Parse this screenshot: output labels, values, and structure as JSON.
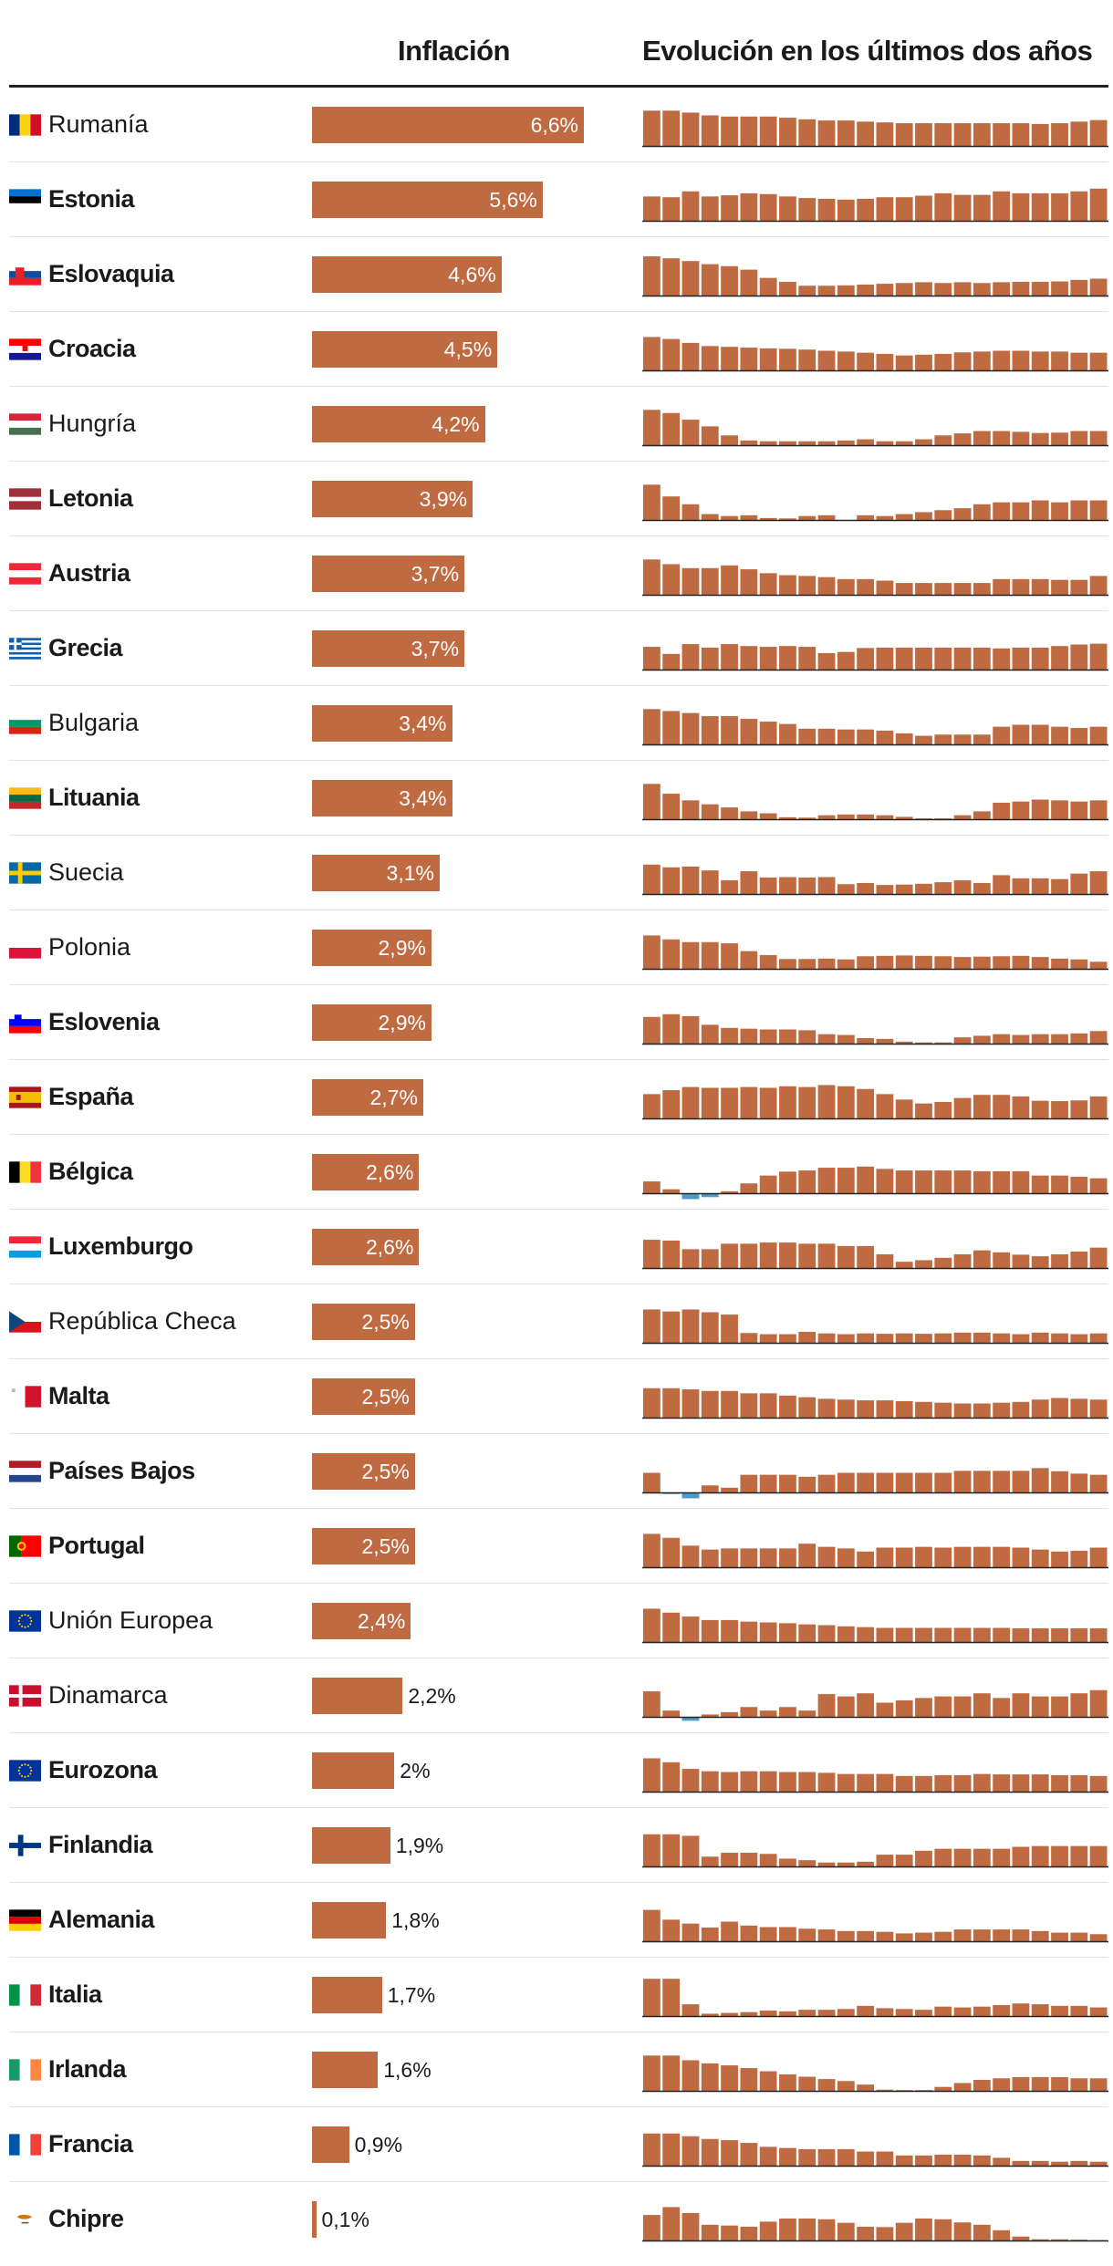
{
  "header": {
    "inflation": "Inflación",
    "evolution": "Evolución en los últimos dos años"
  },
  "colors": {
    "bar": "#c06a41",
    "negative": "#4a9cc6",
    "baseline": "#222222"
  },
  "chart_data": {
    "type": "bar",
    "title": "Inflación",
    "unit": "%",
    "sparkline_title": "Evolución en los últimos dos años",
    "sparkline_note": "24 monthly bars per country; values estimated on a relative scale",
    "rows": [
      {
        "name": "Rumanía",
        "label": "6,6%",
        "value": 6.6,
        "bold": false,
        "flag": "romania",
        "spark": [
          9,
          9,
          8.5,
          7.8,
          7.5,
          7.5,
          7.5,
          7.2,
          6.8,
          6.5,
          6.5,
          6.2,
          6,
          5.8,
          5.8,
          5.8,
          5.8,
          5.8,
          5.8,
          5.8,
          5.6,
          5.8,
          6.2,
          6.6
        ]
      },
      {
        "name": "Estonia",
        "label": "5,6%",
        "value": 5.6,
        "bold": true,
        "flag": "estonia",
        "spark": [
          6.2,
          6,
          7.5,
          6.2,
          6.5,
          7,
          6.8,
          6.2,
          5.8,
          5.6,
          5.4,
          5.6,
          6,
          6,
          6.4,
          7,
          6.6,
          6.6,
          7.5,
          7,
          7,
          7,
          7.5,
          8.2
        ]
      },
      {
        "name": "Eslovaquia",
        "label": "4,6%",
        "value": 4.6,
        "bold": true,
        "flag": "slovakia",
        "spark": [
          10,
          9.5,
          8.8,
          8,
          7.5,
          6.6,
          4.5,
          3.5,
          2.5,
          2.5,
          2.6,
          2.8,
          3,
          3.2,
          3.4,
          3.2,
          3.4,
          3.2,
          3.4,
          3.5,
          3.5,
          3.6,
          4,
          4.3
        ]
      },
      {
        "name": "Croacia",
        "label": "4,5%",
        "value": 4.5,
        "bold": true,
        "flag": "croatia",
        "spark": [
          8.5,
          8,
          7,
          6.2,
          6,
          5.8,
          5.6,
          5.5,
          5.3,
          5,
          4.8,
          4.5,
          4.2,
          3.8,
          4,
          4.2,
          4.6,
          4.8,
          5,
          5,
          4.8,
          4.8,
          4.5,
          4.5
        ]
      },
      {
        "name": "Hungría",
        "label": "4,2%",
        "value": 4.2,
        "bold": false,
        "flag": "hungary",
        "spark": [
          9,
          8.2,
          6.5,
          4.8,
          2.5,
          1.2,
          1,
          1,
          1,
          1,
          1.2,
          1.5,
          1,
          1,
          1.5,
          2.5,
          3,
          3.6,
          3.6,
          3.4,
          3.1,
          3.2,
          3.6,
          3.6
        ]
      },
      {
        "name": "Letonia",
        "label": "3,9%",
        "value": 3.9,
        "bold": true,
        "flag": "latvia",
        "spark": [
          9,
          6,
          4,
          1.5,
          1,
          1.2,
          0.5,
          0.4,
          1,
          1.2,
          0,
          1.2,
          1,
          1.5,
          2,
          2.5,
          3,
          4,
          4.5,
          4.5,
          5,
          4.5,
          5,
          5
        ]
      },
      {
        "name": "Austria",
        "label": "3,7%",
        "value": 3.7,
        "bold": true,
        "flag": "austria",
        "spark": [
          9,
          7.8,
          6.8,
          6.8,
          7.5,
          6.5,
          5.5,
          5,
          4.8,
          4.5,
          4,
          4,
          3.6,
          3,
          3,
          3,
          3,
          3,
          4,
          4,
          4,
          3.8,
          3.8,
          4.8
        ]
      },
      {
        "name": "Grecia",
        "label": "3,7%",
        "value": 3.7,
        "bold": true,
        "flag": "greece",
        "spark": [
          5.8,
          4,
          6.5,
          5.6,
          6.5,
          6,
          5.8,
          6,
          5.8,
          4.2,
          4.5,
          5.5,
          5.6,
          5.6,
          5.6,
          5.6,
          5.6,
          5.6,
          5.4,
          5.6,
          5.6,
          6,
          6.4,
          6.6
        ]
      },
      {
        "name": "Bulgaria",
        "label": "3,4%",
        "value": 3.4,
        "bold": false,
        "flag": "bulgaria",
        "spark": [
          9,
          8.5,
          8,
          7.2,
          7.2,
          6.5,
          5.8,
          5.2,
          4,
          4,
          3.8,
          3.8,
          3.5,
          2.8,
          2.2,
          2.5,
          2.5,
          2.5,
          4.5,
          5,
          5,
          4.5,
          4.2,
          4.5
        ]
      },
      {
        "name": "Lituania",
        "label": "3,4%",
        "value": 3.4,
        "bold": true,
        "flag": "lithuania",
        "spark": [
          9,
          6.5,
          4.8,
          3.8,
          3,
          2,
          1.5,
          0.5,
          0.4,
          1,
          1.2,
          1.2,
          1,
          0.6,
          0.2,
          0.2,
          1,
          2,
          4.2,
          4.5,
          5,
          4.8,
          4.5,
          4.8
        ]
      },
      {
        "name": "Suecia",
        "label": "3,1%",
        "value": 3.1,
        "bold": false,
        "flag": "sweden",
        "spark": [
          7.5,
          6.8,
          7,
          6,
          3.5,
          5.8,
          4.2,
          4.3,
          4.2,
          4.3,
          2.5,
          2.8,
          2.3,
          2.4,
          2.6,
          3,
          3.5,
          2.8,
          4.8,
          4,
          4,
          3.8,
          5.2,
          5.8
        ]
      },
      {
        "name": "Polonia",
        "label": "2,9%",
        "value": 2.9,
        "bold": false,
        "flag": "poland",
        "spark": [
          8.5,
          7.5,
          6.8,
          6.8,
          6.5,
          4.5,
          3.5,
          2.5,
          2.5,
          2.6,
          2.4,
          3.2,
          3.3,
          3.4,
          3.3,
          3.2,
          3,
          3.1,
          3.2,
          3.3,
          3,
          2.6,
          2.4,
          1.8
        ]
      },
      {
        "name": "Eslovenia",
        "label": "2,9%",
        "value": 2.9,
        "bold": true,
        "flag": "slovenia",
        "spark": [
          6.8,
          7.5,
          7,
          4.8,
          4,
          3.8,
          3.6,
          3.6,
          3.4,
          2.4,
          2.2,
          1.4,
          1.2,
          0.5,
          0.3,
          0.3,
          1.6,
          2,
          2.4,
          2.2,
          2.4,
          2.4,
          2.6,
          3.2
        ]
      },
      {
        "name": "España",
        "label": "2,7%",
        "value": 2.7,
        "bold": true,
        "flag": "spain",
        "spark": [
          6.2,
          7.2,
          8,
          7.8,
          7.8,
          8,
          7.8,
          8.2,
          8,
          8.5,
          8.2,
          7.5,
          6.2,
          4.8,
          3.8,
          4.2,
          5.2,
          6,
          6,
          5.6,
          4.5,
          4.4,
          4.6,
          5.6
        ]
      },
      {
        "name": "Bélgica",
        "label": "2,6%",
        "value": 2.6,
        "bold": true,
        "flag": "belgium",
        "spark": [
          3,
          1,
          -1.5,
          -1,
          0.5,
          2.5,
          4.5,
          5.5,
          5.8,
          6.5,
          6.5,
          6.8,
          6.2,
          5.8,
          5.8,
          5.8,
          5.8,
          5.6,
          5.6,
          5.6,
          4.5,
          4.5,
          4.2,
          3.8
        ]
      },
      {
        "name": "Luxemburgo",
        "label": "2,6%",
        "value": 2.6,
        "bold": true,
        "flag": "luxembourg",
        "spark": [
          7.2,
          7,
          4.8,
          4.8,
          6.2,
          6.2,
          6.5,
          6.5,
          6.2,
          6.2,
          5.6,
          5.6,
          3.5,
          1.6,
          2,
          2.6,
          3.5,
          4.5,
          4,
          3.4,
          3,
          3.5,
          4.2,
          5.2
        ]
      },
      {
        "name": "República Checa",
        "label": "2,5%",
        "value": 2.5,
        "bold": false,
        "flag": "czechia",
        "spark": [
          8.5,
          8,
          8.5,
          7.8,
          7.2,
          2.5,
          2.2,
          2.2,
          2.8,
          2.4,
          2.2,
          2.4,
          2.3,
          2.4,
          2.3,
          2.4,
          2.6,
          2.6,
          2.4,
          2.2,
          2.6,
          2.4,
          2.2,
          2.4
        ]
      },
      {
        "name": "Malta",
        "label": "2,5%",
        "value": 2.5,
        "bold": true,
        "flag": "malta",
        "spark": [
          7.5,
          7.5,
          7.2,
          6.8,
          6.8,
          6.2,
          6.2,
          5.6,
          5.2,
          4.8,
          4.6,
          4.4,
          4.4,
          4.2,
          4,
          3.8,
          3.6,
          3.6,
          3.8,
          4,
          4.6,
          5,
          4.8,
          4.6
        ]
      },
      {
        "name": "Países Bajos",
        "label": "2,5%",
        "value": 2.5,
        "bold": true,
        "flag": "netherlands",
        "spark": [
          5,
          -0.4,
          -1.5,
          1.8,
          1.2,
          4.5,
          4.5,
          4.5,
          4,
          4.5,
          5,
          5,
          5,
          5,
          5,
          5,
          5.5,
          5.5,
          5.5,
          5.5,
          6.2,
          5.4,
          4.8,
          4.5
        ]
      },
      {
        "name": "Portugal",
        "label": "2,5%",
        "value": 2.5,
        "bold": true,
        "flag": "portugal",
        "spark": [
          8.5,
          7.5,
          5.5,
          4.5,
          4.8,
          4.8,
          4.8,
          4.8,
          6,
          5.2,
          4.8,
          4,
          5,
          5,
          5.2,
          5,
          5.2,
          5.2,
          5.2,
          5,
          4.5,
          4,
          4.2,
          5
        ]
      },
      {
        "name": "Unión Europea",
        "label": "2,4%",
        "value": 2.4,
        "bold": false,
        "flag": "eu",
        "spark": [
          8.5,
          7.5,
          6.5,
          5.6,
          5.6,
          5.2,
          5,
          4.8,
          4.5,
          4.3,
          4,
          3.8,
          3.6,
          3.6,
          3.6,
          3.6,
          3.6,
          3.6,
          3.6,
          3.5,
          3.5,
          3.5,
          3.5,
          3.5
        ]
      },
      {
        "name": "Dinamarca",
        "label": "2,2%",
        "value": 2.2,
        "bold": false,
        "flag": "denmark",
        "spark": [
          6.5,
          1.6,
          -1,
          0.6,
          1.2,
          2.5,
          1.6,
          2.5,
          1.6,
          5.8,
          5.2,
          6,
          3.6,
          4.2,
          4.8,
          5.2,
          5.2,
          6,
          4.8,
          6,
          5.2,
          5.2,
          6,
          6.8
        ]
      },
      {
        "name": "Eurozona",
        "label": "2%",
        "value": 2.0,
        "bold": true,
        "flag": "eu",
        "spark": [
          8.5,
          7.5,
          5.8,
          5.2,
          5,
          5.2,
          5.2,
          5,
          5,
          4.8,
          4.5,
          4.5,
          4.5,
          4,
          4,
          4.2,
          4.2,
          4.5,
          4.4,
          4.4,
          4.4,
          4.2,
          4.2,
          4
        ]
      },
      {
        "name": "Finlandia",
        "label": "1,9%",
        "value": 1.9,
        "bold": true,
        "flag": "finland",
        "spark": [
          8.2,
          8.2,
          7.8,
          2.5,
          3.5,
          3.5,
          3.2,
          2,
          1.6,
          1,
          1,
          1.2,
          3,
          3,
          4,
          4.5,
          4.5,
          4.5,
          4.5,
          5,
          5.2,
          5.2,
          5.2,
          5.2
        ]
      },
      {
        "name": "Alemania",
        "label": "1,8%",
        "value": 1.8,
        "bold": true,
        "flag": "germany",
        "spark": [
          8,
          5.5,
          4.5,
          3.5,
          5,
          4,
          3.6,
          3.6,
          3.2,
          3,
          2.6,
          2.6,
          2.4,
          2,
          2.2,
          2.4,
          3,
          3,
          3,
          3,
          2.6,
          2.2,
          2.2,
          1.8
        ]
      },
      {
        "name": "Italia",
        "label": "1,7%",
        "value": 1.7,
        "bold": true,
        "flag": "italy",
        "spark": [
          9.5,
          9.5,
          3,
          0.6,
          0.8,
          1,
          1.4,
          1.2,
          1.6,
          1.6,
          1.8,
          2.6,
          2,
          1.8,
          1.6,
          2.4,
          2.2,
          2.4,
          2.8,
          3.2,
          3,
          2.6,
          2.6,
          2.2
        ]
      },
      {
        "name": "Irlanda",
        "label": "1,6%",
        "value": 1.6,
        "bold": true,
        "flag": "ireland",
        "spark": [
          9,
          9,
          7.8,
          7,
          6.5,
          5.8,
          5,
          4.2,
          3.6,
          3,
          2.5,
          1.6,
          0.3,
          0.2,
          0.2,
          1,
          2,
          2.8,
          3.2,
          3.5,
          3.5,
          3.5,
          3.2,
          3.2
        ]
      },
      {
        "name": "Francia",
        "label": "0,9%",
        "value": 0.9,
        "bold": true,
        "flag": "france",
        "spark": [
          8.2,
          8.2,
          7.5,
          6.8,
          6.5,
          5.8,
          4.8,
          4.5,
          4.2,
          4.2,
          4.2,
          3.6,
          3.6,
          2.6,
          2.6,
          2.8,
          2.8,
          2.6,
          2,
          1.2,
          1.2,
          1,
          1.2,
          1
        ]
      },
      {
        "name": "Chipre",
        "label": "0,1%",
        "value": 0.1,
        "bold": true,
        "flag": "cyprus",
        "spark": [
          6.5,
          8.5,
          7,
          4,
          3.8,
          3.5,
          4.8,
          5.6,
          5.6,
          5.4,
          4.5,
          3.5,
          3.4,
          4.5,
          5.6,
          5.4,
          4.6,
          4,
          2.6,
          1,
          0.3,
          0.3,
          0.2,
          0.1
        ]
      }
    ]
  }
}
